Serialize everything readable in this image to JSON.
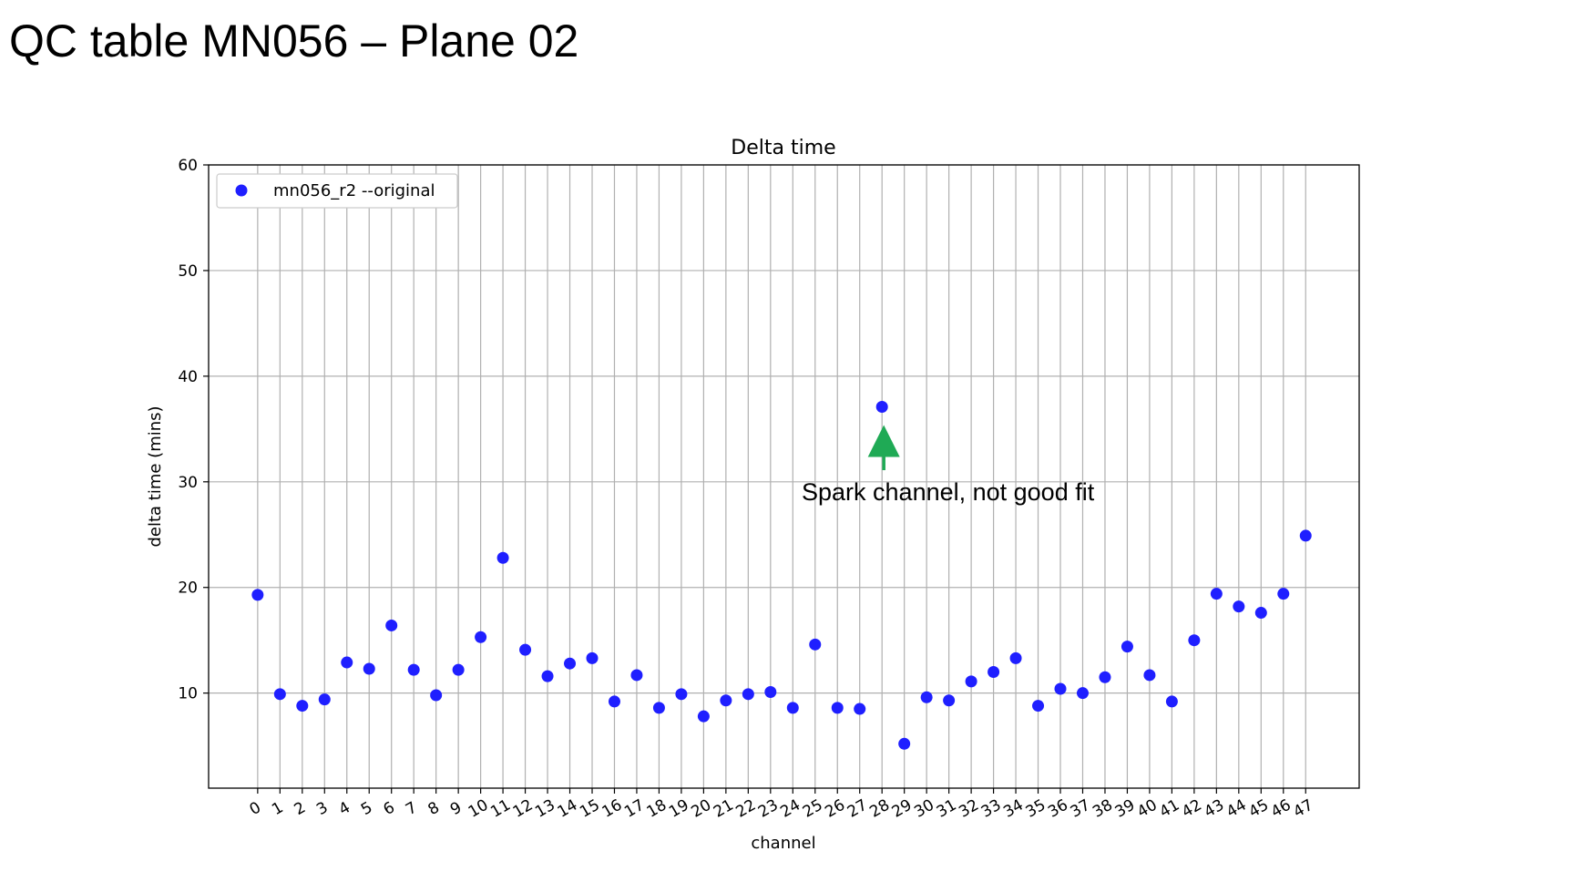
{
  "slide": {
    "title": "QC table MN056 – Plane 02"
  },
  "chart_data": {
    "type": "scatter",
    "title": "Delta time",
    "xlabel": "channel",
    "ylabel": "delta time (mins)",
    "ylim": [
      1,
      60
    ],
    "xlim": [
      -2.2,
      49.4
    ],
    "yticks": [
      10,
      20,
      30,
      40,
      50,
      60
    ],
    "xticks": [
      0,
      1,
      2,
      3,
      4,
      5,
      6,
      7,
      8,
      9,
      10,
      11,
      12,
      13,
      14,
      15,
      16,
      17,
      18,
      19,
      20,
      21,
      22,
      23,
      24,
      25,
      26,
      27,
      28,
      29,
      30,
      31,
      32,
      33,
      34,
      35,
      36,
      37,
      38,
      39,
      40,
      41,
      42,
      43,
      44,
      45,
      46,
      47
    ],
    "grid": true,
    "legend_position": "upper-left",
    "series": [
      {
        "name": "mn056_r2 --original",
        "color": "#1f1fff",
        "x": [
          0,
          1,
          2,
          3,
          4,
          5,
          6,
          7,
          8,
          9,
          10,
          11,
          12,
          13,
          14,
          15,
          16,
          17,
          18,
          19,
          20,
          21,
          22,
          23,
          24,
          25,
          26,
          27,
          28,
          29,
          30,
          31,
          32,
          33,
          34,
          35,
          36,
          37,
          38,
          39,
          40,
          41,
          42,
          43,
          44,
          45,
          46,
          47
        ],
        "y": [
          19.3,
          9.9,
          8.8,
          9.4,
          12.9,
          12.3,
          16.4,
          12.2,
          9.8,
          12.2,
          15.3,
          22.8,
          14.1,
          11.6,
          12.8,
          13.3,
          9.2,
          11.7,
          8.6,
          9.9,
          7.8,
          9.3,
          9.9,
          10.1,
          8.6,
          14.6,
          8.6,
          8.5,
          37.1,
          5.2,
          9.6,
          9.3,
          11.1,
          12.0,
          13.3,
          8.8,
          10.4,
          10.0,
          11.5,
          14.4,
          11.7,
          9.2,
          15.0,
          19.4,
          18.2,
          17.6,
          19.4,
          24.9
        ]
      }
    ],
    "annotations": [
      {
        "text": "Spark channel, not good fit",
        "target_x": 28,
        "target_y": 37.1,
        "arrow_color": "#1faa55"
      }
    ]
  }
}
